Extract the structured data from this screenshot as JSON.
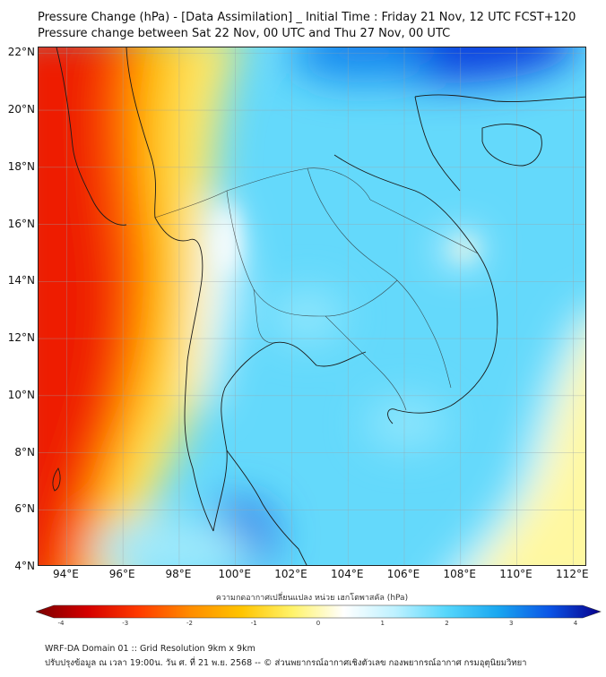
{
  "title_line1": "Pressure Change (hPa) - [Data Assimilation] _ Initial Time : Friday 21 Nov, 12 UTC FCST+120",
  "title_line2": "Pressure change between Sat 22 Nov, 00 UTC and Thu 27 Nov, 00 UTC",
  "map": {
    "lon_range": [
      93,
      112.5
    ],
    "lat_range": [
      4,
      22.2
    ],
    "lat_ticks": [
      "22°N",
      "20°N",
      "18°N",
      "16°N",
      "14°N",
      "12°N",
      "10°N",
      "8°N",
      "6°N",
      "4°N"
    ],
    "lon_ticks": [
      "94°E",
      "96°E",
      "98°E",
      "100°E",
      "102°E",
      "104°E",
      "106°E",
      "108°E",
      "110°E",
      "112°E"
    ],
    "gridlines": true,
    "coastline_color": "#1a1a1a"
  },
  "colorbar": {
    "title": "ความกดอากาศเปลี่ยนแปลง หน่วย เฮกโตพาสคัล (hPa)",
    "tick_labels": [
      "-4",
      "-3",
      "-2",
      "-1",
      "0",
      "1",
      "2",
      "3",
      "4"
    ],
    "range": [
      -4,
      4
    ],
    "colors": [
      "#7a0000",
      "#d40000",
      "#ff3a00",
      "#ff8c00",
      "#ffc400",
      "#fff36a",
      "#ffffff",
      "#bdf1ff",
      "#55d6fb",
      "#1aa7f0",
      "#0b55e6",
      "#08008c"
    ]
  },
  "footer_line1": "WRF-DA Domain 01 :: Grid Resolution 9km x 9km",
  "footer_line2": "ปรับปรุงข้อมูล ณ เวลา 19:00น. วัน ศ. ที่ 21 พ.ย. 2568 -- © ส่วนพยากรณ์อากาศเชิงตัวเลข กองพยากรณ์อากาศ กรมอุตุนิยมวิทยา"
}
